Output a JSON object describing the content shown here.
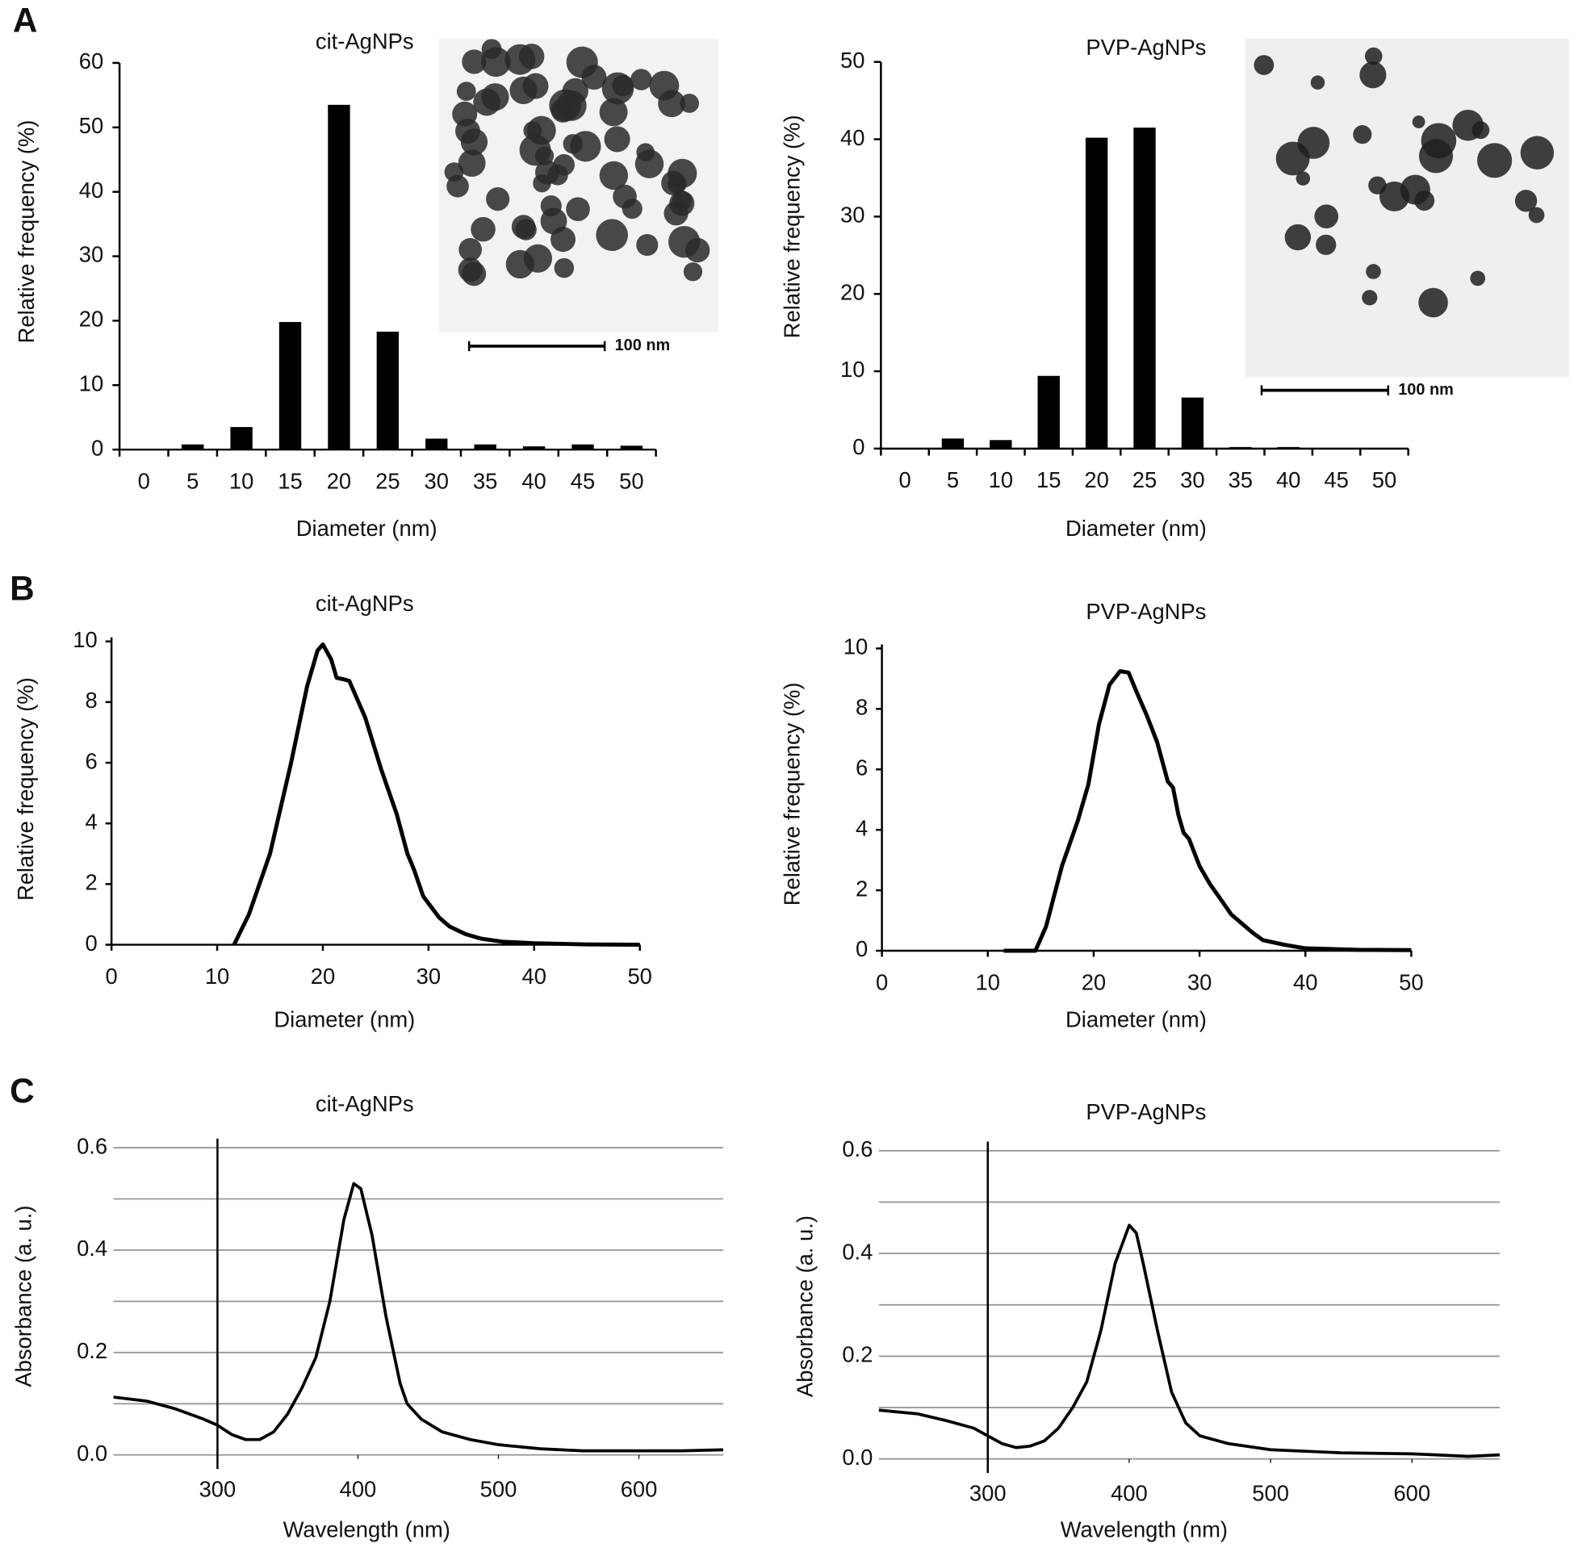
{
  "chart_data": [
    {
      "type": "bar",
      "panel": "A",
      "title": "cit-AgNPs",
      "xlabel": "Diameter (nm)",
      "ylabel": "Relative frequency (%)",
      "categories": [
        "0",
        "5",
        "10",
        "15",
        "20",
        "25",
        "30",
        "35",
        "40",
        "45",
        "50"
      ],
      "values": [
        0,
        0.8,
        3.5,
        19.8,
        53.5,
        18.3,
        1.7,
        0.8,
        0.5,
        0.8,
        0.6
      ],
      "color": "#000000",
      "ylim": [
        0,
        60
      ],
      "yticks": [
        0,
        10,
        20,
        30,
        40,
        50,
        60
      ],
      "inset_scale_label": "100 nm"
    },
    {
      "type": "bar",
      "title": "PVP-AgNPs",
      "xlabel": "Diameter (nm)",
      "ylabel": "Relative frequency (%)",
      "categories": [
        "0",
        "5",
        "10",
        "15",
        "20",
        "25",
        "30",
        "35",
        "40",
        "45",
        "50"
      ],
      "values": [
        0,
        1.3,
        1.1,
        9.4,
        40.2,
        41.5,
        6.6,
        0.2,
        0.2,
        0,
        0
      ],
      "color": "#000000",
      "ylim": [
        0,
        50
      ],
      "yticks": [
        0,
        10,
        20,
        30,
        40,
        50
      ],
      "inset_scale_label": "100 nm"
    },
    {
      "type": "line",
      "panel": "B",
      "title": "cit-AgNPs",
      "xlabel": "Diameter (nm)",
      "ylabel": "Relative frequency (%)",
      "x": [
        11.6,
        13,
        15,
        17,
        18.5,
        19.5,
        20,
        20.8,
        21.3,
        22,
        22.5,
        24,
        25.5,
        27,
        28,
        28.6,
        29.5,
        31,
        32,
        33.5,
        35,
        37,
        40,
        45,
        50
      ],
      "values": [
        0,
        1,
        3,
        6,
        8.5,
        9.7,
        9.9,
        9.4,
        8.8,
        8.75,
        8.7,
        7.5,
        5.8,
        4.3,
        3,
        2.5,
        1.6,
        0.9,
        0.6,
        0.35,
        0.2,
        0.1,
        0.05,
        0.01,
        0
      ],
      "color": "#000000",
      "xlim": [
        0,
        50
      ],
      "xticks": [
        0,
        10,
        20,
        30,
        40,
        50
      ],
      "ylim": [
        0,
        10
      ],
      "yticks": [
        0,
        2,
        4,
        6,
        8,
        10
      ]
    },
    {
      "type": "line",
      "title": "PVP-AgNPs",
      "xlabel": "Diameter (nm)",
      "ylabel": "Relative frequency (%)",
      "x": [
        11.5,
        14.5,
        15.5,
        17,
        18.5,
        19.5,
        20.5,
        21.5,
        22.5,
        23.3,
        24,
        25,
        26,
        27,
        27.5,
        28,
        28.5,
        29,
        30,
        31,
        32,
        33,
        34,
        35,
        36,
        38,
        40,
        45,
        50
      ],
      "values": [
        0,
        0,
        0.8,
        2.8,
        4.3,
        5.5,
        7.5,
        8.8,
        9.25,
        9.2,
        8.6,
        7.8,
        6.9,
        5.6,
        5.4,
        4.5,
        3.9,
        3.7,
        2.8,
        2.2,
        1.7,
        1.2,
        0.9,
        0.6,
        0.35,
        0.2,
        0.08,
        0.03,
        0.02
      ],
      "color": "#000000",
      "xlim": [
        0,
        50
      ],
      "xticks": [
        0,
        10,
        20,
        30,
        40,
        50
      ],
      "ylim": [
        0,
        10
      ],
      "yticks": [
        0,
        2,
        4,
        6,
        8,
        10
      ]
    },
    {
      "type": "line",
      "panel": "C",
      "title": "cit-AgNPs",
      "xlabel": "Wavelength (nm)",
      "ylabel": "Absorbance  (a. u.)",
      "x": [
        226,
        250,
        270,
        290,
        300,
        310,
        320,
        330,
        340,
        350,
        360,
        370,
        380,
        390,
        397,
        402,
        410,
        420,
        430,
        435,
        445,
        460,
        480,
        500,
        530,
        560,
        600,
        630,
        660
      ],
      "values": [
        0.113,
        0.105,
        0.09,
        0.07,
        0.058,
        0.04,
        0.03,
        0.03,
        0.045,
        0.08,
        0.13,
        0.19,
        0.3,
        0.46,
        0.53,
        0.52,
        0.43,
        0.27,
        0.14,
        0.1,
        0.07,
        0.045,
        0.03,
        0.02,
        0.012,
        0.008,
        0.008,
        0.008,
        0.01
      ],
      "color": "#000000",
      "xlim": [
        226,
        660
      ],
      "xticks": [
        300,
        400,
        500,
        600
      ],
      "y_axis_crossing": 300,
      "ylim": [
        0,
        0.61
      ],
      "yticks": [
        {
          "value": 0,
          "label": "0.0"
        },
        0.2,
        0.4,
        0.6
      ],
      "minor_grid": [
        0.1,
        0.3,
        0.5
      ],
      "grid": true
    },
    {
      "type": "line",
      "title": "PVP-AgNPs",
      "xlabel": "Wavelength (nm)",
      "ylabel": "Absorbance  (a. u.)",
      "x": [
        223,
        250,
        270,
        290,
        300,
        310,
        320,
        330,
        340,
        350,
        360,
        370,
        380,
        390,
        400,
        405,
        410,
        420,
        430,
        440,
        450,
        470,
        500,
        550,
        600,
        640,
        662
      ],
      "values": [
        0.095,
        0.088,
        0.075,
        0.06,
        0.045,
        0.03,
        0.022,
        0.025,
        0.035,
        0.06,
        0.1,
        0.15,
        0.25,
        0.38,
        0.455,
        0.44,
        0.38,
        0.25,
        0.13,
        0.07,
        0.045,
        0.03,
        0.018,
        0.012,
        0.01,
        0.005,
        0.008
      ],
      "color": "#000000",
      "xlim": [
        223,
        662
      ],
      "xticks": [
        300,
        400,
        500,
        600
      ],
      "y_axis_crossing": 300,
      "ylim": [
        0,
        0.61
      ],
      "yticks": [
        {
          "value": 0,
          "label": "0.0"
        },
        0.2,
        0.4,
        0.6
      ],
      "minor_grid": [
        0.1,
        0.3,
        0.5
      ],
      "grid": true
    }
  ]
}
